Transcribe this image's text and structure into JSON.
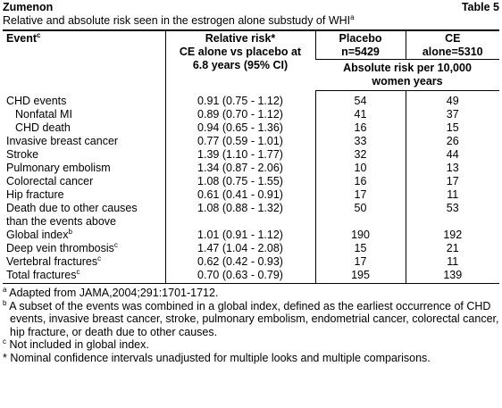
{
  "header": {
    "drug": "Zumenon",
    "table_label": "Table 5",
    "caption": "Relative and absolute risk seen in the estrogen alone substudy of WHI",
    "caption_sup": "a"
  },
  "table": {
    "columns": [
      {
        "lines": [
          "Event"
        ],
        "sup": "c"
      },
      {
        "lines": [
          "Relative risk*",
          "CE alone vs placebo at",
          "6.8 years (95% CI)"
        ]
      },
      {
        "lines": [
          "Placebo",
          "n=5429"
        ]
      },
      {
        "lines": [
          "CE",
          "alone=5310"
        ]
      }
    ],
    "subheader": [
      "Absolute risk per 10,000",
      "women years"
    ],
    "rows": [
      {
        "event": [
          "CHD events"
        ],
        "level": 0,
        "rr": "0.91 (0.75 - 1.12)",
        "placebo": 54,
        "ce": 49
      },
      {
        "event": [
          "Nonfatal MI"
        ],
        "level": 1,
        "rr": "0.89 (0.70 - 1.12)",
        "placebo": 41,
        "ce": 37
      },
      {
        "event": [
          "CHD death"
        ],
        "level": 1,
        "rr": "0.94 (0.65 - 1.36)",
        "placebo": 16,
        "ce": 15
      },
      {
        "event": [
          "Invasive breast cancer"
        ],
        "level": 0,
        "rr": "0.77 (0.59 - 1.01)",
        "placebo": 33,
        "ce": 26
      },
      {
        "event": [
          "Stroke"
        ],
        "level": 0,
        "rr": "1.39 (1.10 - 1.77)",
        "placebo": 32,
        "ce": 44
      },
      {
        "event": [
          "Pulmonary embolism"
        ],
        "level": 0,
        "rr": "1.34 (0.87 - 2.06)",
        "placebo": 10,
        "ce": 13
      },
      {
        "event": [
          "Colorectal cancer"
        ],
        "level": 0,
        "rr": "1.08 (0.75 - 1.55)",
        "placebo": 16,
        "ce": 17
      },
      {
        "event": [
          "Hip fracture"
        ],
        "level": 0,
        "rr": "0.61 (0.41 - 0.91)",
        "placebo": 17,
        "ce": 11
      },
      {
        "event": [
          "Death due to other causes",
          "than the events above"
        ],
        "level": 0,
        "rr": "1.08 (0.88 - 1.32)",
        "placebo": 50,
        "ce": 53
      },
      {
        "event": [
          "Global index"
        ],
        "sup": "b",
        "level": 0,
        "rr": "1.01 (0.91 - 1.12)",
        "placebo": 190,
        "ce": 192
      },
      {
        "event": [
          "Deep vein thrombosis"
        ],
        "sup": "c",
        "level": 0,
        "rr": "1.47 (1.04 - 2.08)",
        "placebo": 15,
        "ce": 21
      },
      {
        "event": [
          "Vertebral fractures"
        ],
        "sup": "c",
        "level": 0,
        "rr": "0.62 (0.42 - 0.93)",
        "placebo": 17,
        "ce": 11
      },
      {
        "event": [
          "Total fractures"
        ],
        "sup": "c",
        "level": 0,
        "rr": "0.70 (0.63 - 0.79)",
        "placebo": 195,
        "ce": 139
      }
    ]
  },
  "footnotes": [
    {
      "marker": "a",
      "text": "Adapted from JAMA,2004;291:1701-1712."
    },
    {
      "marker": "b",
      "text": "A subset of the events was combined in a global index, defined as the earliest occurrence of CHD events, invasive breast cancer, stroke, pulmonary embolism, endometrial cancer, colorectal cancer, hip fracture, or death due to other causes."
    },
    {
      "marker": "c",
      "text": "Not included in global index."
    },
    {
      "marker": "*",
      "text": "Nominal confidence intervals unadjusted for multiple looks and multiple comparisons."
    }
  ]
}
